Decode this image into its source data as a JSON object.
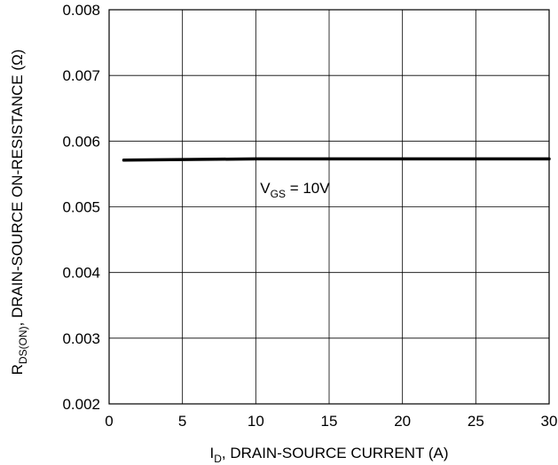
{
  "chart_data": {
    "type": "line",
    "title": "",
    "xlabel": {
      "main": "I",
      "sub": "D",
      "rest": ", DRAIN-SOURCE CURRENT (A)"
    },
    "ylabel": {
      "main": "R",
      "sub": "DS(ON)",
      "rest": ", DRAIN-SOURCE ON-RESISTANCE (Ω)"
    },
    "xlim": [
      0,
      30
    ],
    "ylim": [
      0.002,
      0.008
    ],
    "xticks": [
      "0",
      "5",
      "10",
      "15",
      "20",
      "25",
      "30"
    ],
    "yticks": [
      "0.002",
      "0.003",
      "0.004",
      "0.005",
      "0.006",
      "0.007",
      "0.008"
    ],
    "grid": true,
    "series": [
      {
        "name": "",
        "x": [
          1,
          5,
          10,
          15,
          20,
          25,
          30
        ],
        "y": [
          0.00571,
          0.00572,
          0.00573,
          0.00573,
          0.00573,
          0.00573,
          0.00573
        ],
        "color": "#000000"
      }
    ],
    "annotation": {
      "main": "V",
      "sub": "GS",
      "rest": " = 10V",
      "x": 10.3,
      "y": 0.00529
    }
  }
}
